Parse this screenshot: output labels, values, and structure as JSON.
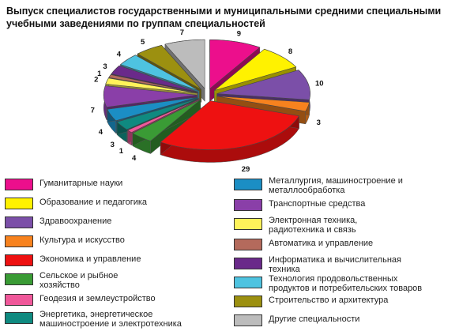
{
  "title": "Выпуск специалистов государственными и муниципальными средними специальными\nучебными заведениями по группам специальностей",
  "chart_data": {
    "type": "pie",
    "title": "Выпуск специалистов государственными и муниципальными средними специальными учебными заведениями по группам специальностей",
    "unit": "%",
    "slices": [
      {
        "name": "Гуманитарные науки",
        "value": 9,
        "color": "#ec0f8c"
      },
      {
        "name": "Образование и педагогика",
        "value": 8,
        "color": "#fff200"
      },
      {
        "name": "Здравоохранение",
        "value": 10,
        "color": "#7b4fa8"
      },
      {
        "name": "Культура и искусство",
        "value": 3,
        "color": "#f7821e"
      },
      {
        "name": "Экономика и управление",
        "value": 29,
        "color": "#ee1111"
      },
      {
        "name": "Сельское и рыбное хозяйство",
        "value": 4,
        "color": "#3a9b35"
      },
      {
        "name": "Геодезия и землеустройство",
        "value": 1,
        "color": "#f0589a"
      },
      {
        "name": "Энергетика, энергетическое машиностроение и электротехника",
        "value": 3,
        "color": "#0f8a80"
      },
      {
        "name": "Металлургия, машиностроение и металлообработка",
        "value": 4,
        "color": "#1b8ec4"
      },
      {
        "name": "Транспортные средства",
        "value": 7,
        "color": "#8a3fa8"
      },
      {
        "name": "Электронная техника, радиотехника и связь",
        "value": 2,
        "color": "#fff35a"
      },
      {
        "name": "Автоматика и управление",
        "value": 1,
        "color": "#b46a5c"
      },
      {
        "name": "Информатика и вычислительная техника",
        "value": 3,
        "color": "#6a2a8a"
      },
      {
        "name": "Технология продовольственных продуктов и потребительских товаров",
        "value": 4,
        "color": "#4ec3e0"
      },
      {
        "name": "Строительство и архитектура",
        "value": 5,
        "color": "#9c9010"
      },
      {
        "name": "Другие специальности",
        "value": 7,
        "color": "#bcbcbc"
      }
    ],
    "legend": "bottom"
  },
  "legend": {
    "left": [
      {
        "label": "Гуманитарные науки",
        "color": "#ec0f8c"
      },
      {
        "label": "Образование и педагогика",
        "color": "#fff200"
      },
      {
        "label": "Здравоохранение",
        "color": "#7b4fa8"
      },
      {
        "label": "Культура и искусство",
        "color": "#f7821e"
      },
      {
        "label": "Экономика и управление",
        "color": "#ee1111"
      },
      {
        "label": "Сельское и рыбное\nхозяйство",
        "color": "#3a9b35"
      },
      {
        "label": "Геодезия и землеустройство",
        "color": "#f0589a"
      },
      {
        "label": "Энергетика, энергетическое\nмашиностроение и электротехника",
        "color": "#0f8a80"
      }
    ],
    "right": [
      {
        "label": "Металлургия, машиностроение и\nметаллообработка",
        "color": "#1b8ec4"
      },
      {
        "label": "Транспортные средства",
        "color": "#8a3fa8"
      },
      {
        "label": "Электронная техника,\nрадиотехника и связь",
        "color": "#fff35a"
      },
      {
        "label": "Автоматика и управление",
        "color": "#b46a5c"
      },
      {
        "label": "Информатика и вычислительная\nтехника",
        "color": "#6a2a8a"
      },
      {
        "label": "Технология продовольственных\nпродуктов и потребительских товаров",
        "color": "#4ec3e0"
      },
      {
        "label": "Строительство и архитектура",
        "color": "#9c9010"
      },
      {
        "label": "Другие специальности",
        "color": "#bcbcbc"
      }
    ]
  }
}
